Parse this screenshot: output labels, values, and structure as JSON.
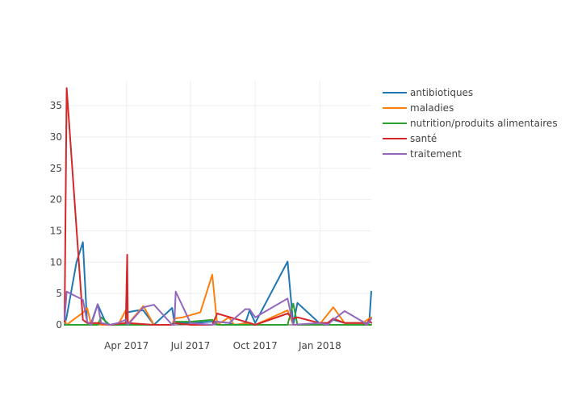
{
  "chart_data": {
    "type": "line",
    "title": "",
    "xlabel": "",
    "ylabel": "",
    "x_axis_type": "date",
    "xlim": [
      "2017-01-03",
      "2018-03-15"
    ],
    "ylim": [
      0,
      39
    ],
    "x_ticks": [
      {
        "date": "2017-04-01",
        "label": "Apr 2017"
      },
      {
        "date": "2017-07-01",
        "label": "Jul 2017"
      },
      {
        "date": "2017-10-01",
        "label": "Oct 2017"
      },
      {
        "date": "2018-01-01",
        "label": "Jan 2018"
      }
    ],
    "y_ticks": [
      0,
      5,
      10,
      15,
      20,
      25,
      30,
      35
    ],
    "grid": true,
    "legend_position": "right",
    "series": [
      {
        "name": "antibiotiques",
        "color": "#1f77b4",
        "points": [
          [
            "2017-01-03",
            0
          ],
          [
            "2017-01-06",
            1.3
          ],
          [
            "2017-01-20",
            10
          ],
          [
            "2017-01-29",
            13.2
          ],
          [
            "2017-02-04",
            0.3
          ],
          [
            "2017-02-10",
            0.3
          ],
          [
            "2017-02-19",
            3.3
          ],
          [
            "2017-02-24",
            2
          ],
          [
            "2017-03-02",
            0.5
          ],
          [
            "2017-03-08",
            0
          ],
          [
            "2017-03-20",
            0
          ],
          [
            "2017-03-31",
            0
          ],
          [
            "2017-04-02",
            2
          ],
          [
            "2017-04-17",
            2.3
          ],
          [
            "2017-04-25",
            2.3
          ],
          [
            "2017-05-10",
            0
          ],
          [
            "2017-06-05",
            2.7
          ],
          [
            "2017-06-08",
            0.3
          ],
          [
            "2017-07-01",
            0.3
          ],
          [
            "2017-08-01",
            0.5
          ],
          [
            "2017-08-08",
            0.5
          ],
          [
            "2017-08-25",
            0.3
          ],
          [
            "2017-09-01",
            0
          ],
          [
            "2017-09-05",
            0
          ],
          [
            "2017-09-17",
            0.3
          ],
          [
            "2017-09-23",
            2.3
          ],
          [
            "2017-10-01",
            0.3
          ],
          [
            "2017-11-16",
            10.1
          ],
          [
            "2017-11-24",
            0
          ],
          [
            "2017-11-30",
            3.5
          ],
          [
            "2017-12-31",
            0.3
          ],
          [
            "2018-01-12",
            0.3
          ],
          [
            "2018-01-20",
            0.8
          ],
          [
            "2018-02-05",
            0.3
          ],
          [
            "2018-03-03",
            0.3
          ],
          [
            "2018-03-08",
            0.3
          ],
          [
            "2018-03-12",
            0.3
          ],
          [
            "2018-03-15",
            5.3
          ]
        ]
      },
      {
        "name": "maladies",
        "color": "#ff7f0e",
        "points": [
          [
            "2017-01-03",
            0.8
          ],
          [
            "2017-01-06",
            0
          ],
          [
            "2017-01-20",
            1.2
          ],
          [
            "2017-01-29",
            1.9
          ],
          [
            "2017-02-04",
            2.7
          ],
          [
            "2017-02-10",
            0
          ],
          [
            "2017-02-19",
            0.3
          ],
          [
            "2017-02-24",
            0
          ],
          [
            "2017-03-02",
            0
          ],
          [
            "2017-03-08",
            0
          ],
          [
            "2017-03-20",
            0
          ],
          [
            "2017-03-31",
            2.3
          ],
          [
            "2017-04-02",
            0
          ],
          [
            "2017-04-25",
            3
          ],
          [
            "2017-05-10",
            0
          ],
          [
            "2017-06-05",
            0
          ],
          [
            "2017-06-08",
            1
          ],
          [
            "2017-06-20",
            1.2
          ],
          [
            "2017-07-15",
            2
          ],
          [
            "2017-08-01",
            8
          ],
          [
            "2017-08-08",
            0
          ],
          [
            "2017-08-25",
            1.2
          ],
          [
            "2017-09-01",
            0
          ],
          [
            "2017-09-23",
            0.3
          ],
          [
            "2017-10-01",
            0
          ],
          [
            "2017-11-16",
            2.3
          ],
          [
            "2017-11-24",
            0
          ],
          [
            "2017-12-31",
            0
          ],
          [
            "2018-01-20",
            2.8
          ],
          [
            "2018-02-05",
            0.3
          ],
          [
            "2018-03-03",
            0.3
          ],
          [
            "2018-03-12",
            1
          ],
          [
            "2018-03-15",
            1.2
          ]
        ]
      },
      {
        "name": "nutrition/produits alimentaires",
        "color": "#2ca02c",
        "points": [
          [
            "2017-01-03",
            0
          ],
          [
            "2017-02-19",
            0
          ],
          [
            "2017-02-24",
            1.2
          ],
          [
            "2017-03-08",
            0
          ],
          [
            "2017-04-25",
            0
          ],
          [
            "2017-06-05",
            0
          ],
          [
            "2017-06-08",
            0.5
          ],
          [
            "2017-07-01",
            0.5
          ],
          [
            "2017-08-01",
            0.8
          ],
          [
            "2017-08-08",
            0
          ],
          [
            "2017-11-16",
            0
          ],
          [
            "2017-11-24",
            3.4
          ],
          [
            "2017-11-30",
            0
          ],
          [
            "2018-03-15",
            0
          ]
        ]
      },
      {
        "name": "santé",
        "color": "#d62728",
        "points": [
          [
            "2017-01-03",
            0.5
          ],
          [
            "2017-01-06",
            37.8
          ],
          [
            "2017-01-29",
            0.8
          ],
          [
            "2017-02-04",
            0.3
          ],
          [
            "2017-02-10",
            0.3
          ],
          [
            "2017-02-19",
            0.3
          ],
          [
            "2017-03-08",
            0
          ],
          [
            "2017-03-31",
            0.3
          ],
          [
            "2017-04-02",
            11.2
          ],
          [
            "2017-04-03",
            0.3
          ],
          [
            "2017-05-10",
            0
          ],
          [
            "2017-06-05",
            0
          ],
          [
            "2017-06-08",
            0.3
          ],
          [
            "2017-07-01",
            0
          ],
          [
            "2017-08-01",
            0
          ],
          [
            "2017-08-08",
            1.8
          ],
          [
            "2017-09-23",
            0.3
          ],
          [
            "2017-10-01",
            0
          ],
          [
            "2017-11-16",
            1.8
          ],
          [
            "2017-11-24",
            1
          ],
          [
            "2017-11-30",
            1.2
          ],
          [
            "2017-12-31",
            0.3
          ],
          [
            "2018-01-12",
            0.3
          ],
          [
            "2018-01-20",
            1
          ],
          [
            "2018-02-05",
            0.3
          ],
          [
            "2018-03-03",
            0.3
          ],
          [
            "2018-03-08",
            0
          ],
          [
            "2018-03-12",
            0.8
          ],
          [
            "2018-03-15",
            0.3
          ]
        ]
      },
      {
        "name": "traitement",
        "color": "#9467bd",
        "points": [
          [
            "2017-01-03",
            0.8
          ],
          [
            "2017-01-06",
            5.3
          ],
          [
            "2017-01-20",
            4.5
          ],
          [
            "2017-01-29",
            4
          ],
          [
            "2017-02-04",
            0.5
          ],
          [
            "2017-02-10",
            0
          ],
          [
            "2017-02-19",
            3.3
          ],
          [
            "2017-02-24",
            0.3
          ],
          [
            "2017-03-08",
            0
          ],
          [
            "2017-03-20",
            0.3
          ],
          [
            "2017-03-31",
            0.8
          ],
          [
            "2017-04-03",
            0
          ],
          [
            "2017-04-25",
            2.8
          ],
          [
            "2017-05-10",
            3.2
          ],
          [
            "2017-06-05",
            0
          ],
          [
            "2017-06-08",
            0
          ],
          [
            "2017-06-10",
            5.3
          ],
          [
            "2017-07-01",
            0.3
          ],
          [
            "2017-08-01",
            0
          ],
          [
            "2017-08-08",
            0.5
          ],
          [
            "2017-08-25",
            0.3
          ],
          [
            "2017-09-17",
            2.5
          ],
          [
            "2017-09-23",
            2.5
          ],
          [
            "2017-10-01",
            1.2
          ],
          [
            "2017-11-16",
            4.2
          ],
          [
            "2017-11-24",
            0
          ],
          [
            "2017-12-31",
            0.3
          ],
          [
            "2018-01-12",
            0
          ],
          [
            "2018-01-20",
            0.8
          ],
          [
            "2018-02-05",
            2.2
          ],
          [
            "2018-03-03",
            0.5
          ],
          [
            "2018-03-08",
            0
          ],
          [
            "2018-03-12",
            0.5
          ],
          [
            "2018-03-15",
            1
          ]
        ]
      }
    ]
  }
}
